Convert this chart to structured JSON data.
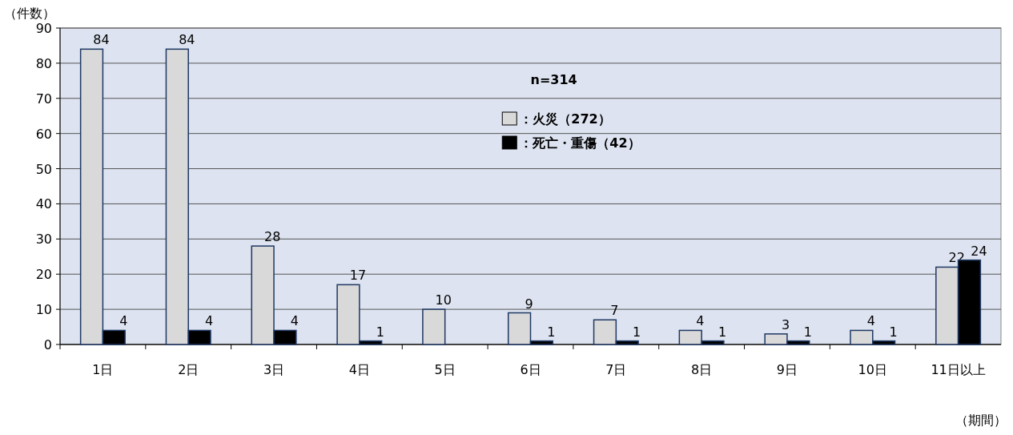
{
  "chart_data": {
    "type": "bar",
    "ylabel": "（件数）",
    "xlabel": "（期間）",
    "categories": [
      "1日",
      "2日",
      "3日",
      "4日",
      "5日",
      "6日",
      "7日",
      "8日",
      "9日",
      "10日",
      "11日以上"
    ],
    "series": [
      {
        "name": "：火災（272）",
        "color": "#d9d9d9",
        "values": [
          84,
          84,
          28,
          17,
          10,
          9,
          7,
          4,
          3,
          4,
          22
        ]
      },
      {
        "name": "：死亡・重傷（42）",
        "color": "#000000",
        "values": [
          4,
          4,
          4,
          1,
          null,
          1,
          1,
          1,
          1,
          1,
          24
        ]
      }
    ],
    "ylim": [
      0,
      90
    ],
    "yticks": [
      0,
      10,
      20,
      30,
      40,
      50,
      60,
      70,
      80,
      90
    ],
    "grid": "y",
    "legend": "top",
    "data_labels": true,
    "annotations": [
      "n=314"
    ]
  }
}
